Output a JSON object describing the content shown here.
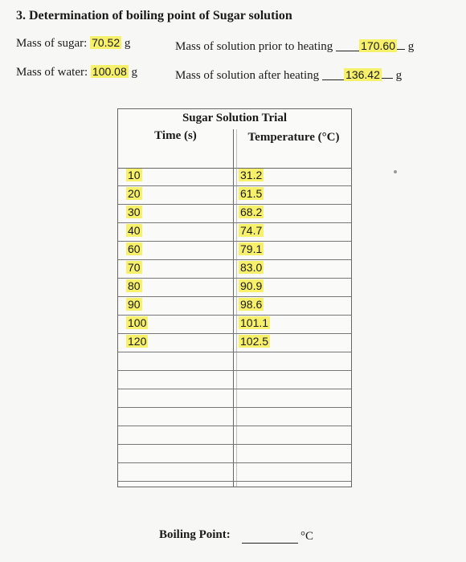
{
  "section": {
    "title": "3. Determination of boiling point of Sugar solution"
  },
  "mass_sugar": {
    "label": "Mass of sugar:",
    "value": "70.52",
    "unit": "g"
  },
  "mass_water": {
    "label": "Mass of water:",
    "value": "100.08",
    "unit": "g"
  },
  "mass_prior": {
    "label": "Mass of solution prior to heating",
    "value": "170.60",
    "unit": "g"
  },
  "mass_after": {
    "label": "Mass of solution after heating",
    "value": "136.42",
    "unit": "g"
  },
  "table": {
    "title": "Sugar Solution Trial",
    "col_time": "Time (s)",
    "col_temp": "Temperature (°C)",
    "rows": [
      {
        "time": "10",
        "temp": "31.2"
      },
      {
        "time": "20",
        "temp": "61.5"
      },
      {
        "time": "30",
        "temp": "68.2"
      },
      {
        "time": "40",
        "temp": "74.7"
      },
      {
        "time": "60",
        "temp": "79.1"
      },
      {
        "time": "70",
        "temp": "83.0"
      },
      {
        "time": "80",
        "temp": "90.9"
      },
      {
        "time": "90",
        "temp": "98.6"
      },
      {
        "time": "100",
        "temp": "101.1"
      },
      {
        "time": "120",
        "temp": "102.5"
      },
      {
        "time": "",
        "temp": ""
      },
      {
        "time": "",
        "temp": ""
      },
      {
        "time": "",
        "temp": ""
      },
      {
        "time": "",
        "temp": ""
      },
      {
        "time": "",
        "temp": ""
      },
      {
        "time": "",
        "temp": ""
      },
      {
        "time": "",
        "temp": ""
      }
    ]
  },
  "boiling_point": {
    "label": "Boiling Point:",
    "unit": "°C"
  },
  "colors": {
    "highlight": "#f6f06a"
  }
}
